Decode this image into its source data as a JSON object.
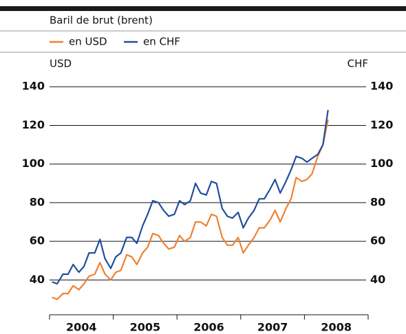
{
  "chart_data": {
    "type": "line",
    "title": "Baril de brut (brent)",
    "ylabel": "USD",
    "y2label": "CHF",
    "categories": [
      "2004",
      "2005",
      "2006",
      "2007",
      "2008"
    ],
    "xlim": [
      2004,
      2009
    ],
    "xticks": [
      2004,
      2005,
      2006,
      2007,
      2008,
      2009
    ],
    "x": [
      2004.04,
      2004.12,
      2004.21,
      2004.29,
      2004.37,
      2004.46,
      2004.54,
      2004.62,
      2004.71,
      2004.79,
      2004.87,
      2004.96,
      2005.04,
      2005.12,
      2005.21,
      2005.29,
      2005.37,
      2005.46,
      2005.54,
      2005.62,
      2005.71,
      2005.79,
      2005.87,
      2005.96,
      2006.04,
      2006.12,
      2006.21,
      2006.29,
      2006.37,
      2006.46,
      2006.54,
      2006.62,
      2006.71,
      2006.79,
      2006.87,
      2006.96,
      2007.04,
      2007.12,
      2007.21,
      2007.29,
      2007.37,
      2007.46,
      2007.54,
      2007.62,
      2007.71,
      2007.79,
      2007.87,
      2007.96,
      2008.04,
      2008.12,
      2008.21,
      2008.29,
      2008.37
    ],
    "series": [
      {
        "name": "en USD",
        "color": "#f08030",
        "values": [
          31,
          30,
          33,
          33,
          37,
          35,
          38,
          42,
          43,
          49,
          43,
          40,
          44,
          45,
          53,
          52,
          48,
          54,
          57,
          64,
          63,
          59,
          56,
          57,
          63,
          60,
          62,
          70,
          70,
          68,
          74,
          73,
          62,
          58,
          58,
          62,
          54,
          58,
          62,
          67,
          67,
          71,
          76,
          70,
          77,
          82,
          93,
          91,
          92,
          95,
          104,
          110,
          123
        ]
      },
      {
        "name": "en CHF",
        "color": "#1f4e9c",
        "axis": "y2",
        "values": [
          39,
          38,
          43,
          43,
          48,
          44,
          47,
          54,
          54,
          61,
          51,
          46,
          52,
          54,
          62,
          62,
          59,
          68,
          74,
          81,
          80,
          76,
          73,
          74,
          81,
          79,
          81,
          90,
          85,
          84,
          91,
          90,
          77,
          73,
          72,
          75,
          67,
          72,
          76,
          82,
          82,
          87,
          92,
          85,
          91,
          97,
          104,
          103,
          101,
          103,
          105,
          110,
          128
        ]
      }
    ],
    "ylim": [
      22,
      144
    ],
    "yticks": [
      40,
      60,
      80,
      100,
      120,
      140
    ],
    "y2lim": [
      22,
      144
    ],
    "y2ticks": [
      40,
      60,
      80,
      100,
      120,
      140
    ],
    "grid": true
  }
}
